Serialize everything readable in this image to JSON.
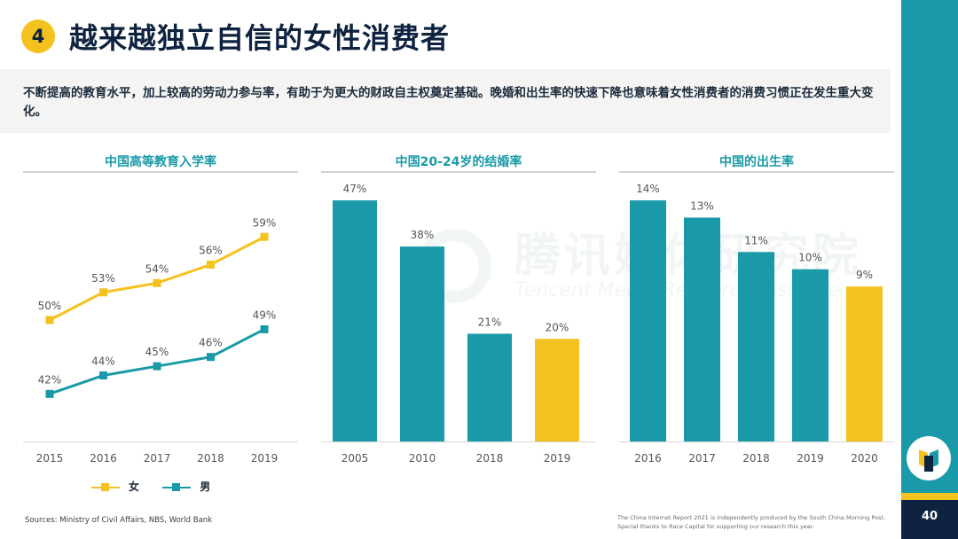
{
  "header": {
    "section_number": "4",
    "title": "越来越独立自信的女性消费者"
  },
  "intro": "不断提高的教育水平，加上较高的劳动力参与率，有助于为更大的财政自主权奠定基础。晚婚和出生率的快速下降也意味着女性消费者的消费习惯正在发生重大变化。",
  "watermark": {
    "cn": "腾讯媒体研究院",
    "en": "Tencent Media Research Institute"
  },
  "colors": {
    "teal": "#1a9aa8",
    "yellow": "#f4c21f",
    "navy": "#0e2340"
  },
  "chart_data": [
    {
      "type": "line",
      "title": "中国高等教育入学率",
      "x": [
        "2015",
        "2016",
        "2017",
        "2018",
        "2019"
      ],
      "series": [
        {
          "name": "女",
          "values": [
            50,
            53,
            54,
            56,
            59
          ],
          "labels": [
            "50%",
            "53%",
            "54%",
            "56%",
            "59%"
          ],
          "color": "#f4c21f"
        },
        {
          "name": "男",
          "values": [
            42,
            44,
            45,
            46,
            49
          ],
          "labels": [
            "42%",
            "44%",
            "45%",
            "46%",
            "49%"
          ],
          "color": "#1a9aa8"
        }
      ],
      "ylim": [
        38,
        62
      ],
      "legend": "bottom-left"
    },
    {
      "type": "bar",
      "title": "中国20-24岁的结婚率",
      "categories": [
        "2005",
        "2010",
        "2018",
        "2019"
      ],
      "values": [
        47,
        38,
        21,
        20
      ],
      "labels": [
        "47%",
        "38%",
        "21%",
        "20%"
      ],
      "highlight_index": 3,
      "ylim": [
        0,
        47
      ]
    },
    {
      "type": "bar",
      "title": "中国的出生率",
      "categories": [
        "2016",
        "2017",
        "2018",
        "2019",
        "2020"
      ],
      "values": [
        14,
        13,
        11,
        10,
        9
      ],
      "labels": [
        "14%",
        "13%",
        "11%",
        "10%",
        "9%"
      ],
      "highlight_index": 4,
      "ylim": [
        0,
        14
      ]
    }
  ],
  "footer": {
    "sources": "Sources: Ministry of Civil Affairs, NBS, World Bank",
    "disclaimer_1": "The China Internet Report 2021 is independently produced by the South China Morning Post.",
    "disclaimer_2": "Special thanks to Race Capital for supporting our research this year.",
    "page_number": "40"
  }
}
